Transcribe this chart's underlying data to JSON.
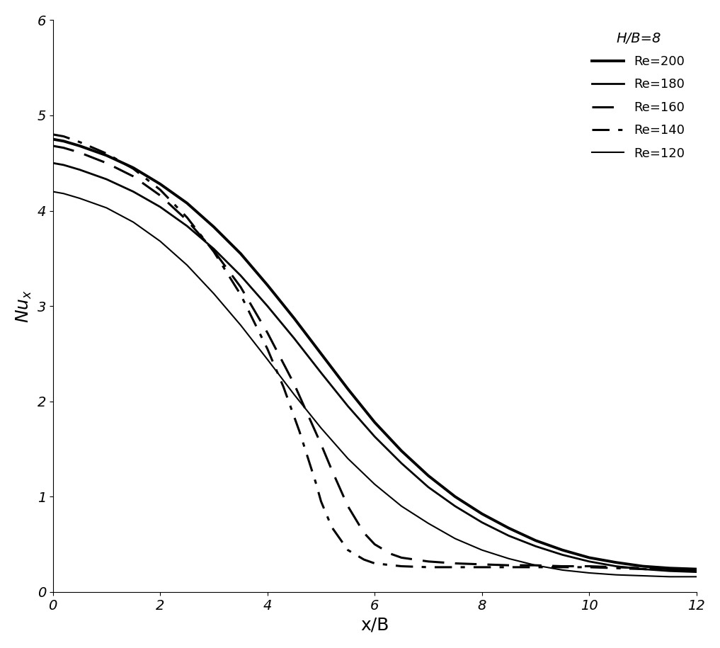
{
  "title": "H/B=8",
  "xlabel": "x/B",
  "ylabel": "$\\mathbf{\\it{Nu_x}}$",
  "xlim": [
    0,
    12
  ],
  "ylim": [
    0,
    6
  ],
  "xticks": [
    0,
    2,
    4,
    6,
    8,
    10,
    12
  ],
  "yticks": [
    0,
    1,
    2,
    3,
    4,
    5,
    6
  ],
  "series": [
    {
      "label": "Re=200",
      "linestyle": "solid",
      "linewidth": 2.8,
      "color": "#000000",
      "x": [
        0,
        0.2,
        0.5,
        1.0,
        1.5,
        2.0,
        2.5,
        3.0,
        3.5,
        4.0,
        4.5,
        5.0,
        5.5,
        6.0,
        6.5,
        7.0,
        7.5,
        8.0,
        8.5,
        9.0,
        9.5,
        10.0,
        10.5,
        11.0,
        11.5,
        12.0
      ],
      "y": [
        4.75,
        4.73,
        4.68,
        4.58,
        4.45,
        4.28,
        4.08,
        3.83,
        3.55,
        3.22,
        2.87,
        2.5,
        2.13,
        1.78,
        1.48,
        1.22,
        1.0,
        0.82,
        0.67,
        0.54,
        0.44,
        0.36,
        0.31,
        0.27,
        0.25,
        0.24
      ]
    },
    {
      "label": "Re=180",
      "linestyle": "solid",
      "linewidth": 2.0,
      "color": "#000000",
      "x": [
        0,
        0.2,
        0.5,
        1.0,
        1.5,
        2.0,
        2.5,
        3.0,
        3.5,
        4.0,
        4.5,
        5.0,
        5.5,
        6.0,
        6.5,
        7.0,
        7.5,
        8.0,
        8.5,
        9.0,
        9.5,
        10.0,
        10.5,
        11.0,
        11.5,
        12.0
      ],
      "y": [
        4.5,
        4.48,
        4.43,
        4.33,
        4.2,
        4.04,
        3.84,
        3.6,
        3.32,
        3.0,
        2.66,
        2.3,
        1.95,
        1.63,
        1.35,
        1.1,
        0.9,
        0.73,
        0.59,
        0.48,
        0.39,
        0.32,
        0.27,
        0.24,
        0.22,
        0.21
      ]
    },
    {
      "label": "Re=160",
      "linestyle": "dashed",
      "linewidth": 2.2,
      "color": "#000000",
      "dash_pattern": [
        10,
        5
      ],
      "x": [
        0,
        0.2,
        0.5,
        1.0,
        1.5,
        2.0,
        2.5,
        3.0,
        3.5,
        4.0,
        4.5,
        5.0,
        5.2,
        5.5,
        5.8,
        6.0,
        6.3,
        6.5,
        7.0,
        7.5,
        8.0,
        8.5,
        9.0,
        9.5,
        10.0,
        10.5,
        11.0,
        11.5,
        12.0
      ],
      "y": [
        4.68,
        4.66,
        4.61,
        4.5,
        4.36,
        4.16,
        3.9,
        3.58,
        3.2,
        2.72,
        2.18,
        1.55,
        1.28,
        0.9,
        0.62,
        0.5,
        0.4,
        0.36,
        0.32,
        0.3,
        0.29,
        0.28,
        0.28,
        0.27,
        0.27,
        0.26,
        0.25,
        0.24,
        0.23
      ]
    },
    {
      "label": "Re=140",
      "linestyle": "dashdot",
      "linewidth": 2.2,
      "color": "#000000",
      "dash_pattern": [
        8,
        4,
        2,
        4
      ],
      "x": [
        0,
        0.2,
        0.5,
        1.0,
        1.5,
        2.0,
        2.5,
        3.0,
        3.5,
        4.0,
        4.3,
        4.6,
        4.9,
        5.0,
        5.2,
        5.5,
        5.8,
        6.0,
        6.5,
        7.0,
        7.5,
        8.0,
        8.5,
        9.0,
        9.5,
        10.0,
        10.5,
        11.0,
        11.5,
        12.0
      ],
      "y": [
        4.8,
        4.78,
        4.72,
        4.6,
        4.44,
        4.22,
        3.93,
        3.57,
        3.12,
        2.55,
        2.15,
        1.68,
        1.15,
        0.95,
        0.68,
        0.44,
        0.34,
        0.3,
        0.27,
        0.26,
        0.26,
        0.26,
        0.26,
        0.26,
        0.26,
        0.26,
        0.25,
        0.24,
        0.23,
        0.22
      ]
    },
    {
      "label": "Re=120",
      "linestyle": "solid",
      "linewidth": 1.5,
      "color": "#000000",
      "x": [
        0,
        0.2,
        0.5,
        1.0,
        1.5,
        2.0,
        2.5,
        3.0,
        3.5,
        4.0,
        4.5,
        5.0,
        5.5,
        6.0,
        6.5,
        7.0,
        7.5,
        8.0,
        8.5,
        9.0,
        9.5,
        10.0,
        10.5,
        11.0,
        11.5,
        12.0
      ],
      "y": [
        4.2,
        4.18,
        4.13,
        4.03,
        3.88,
        3.68,
        3.43,
        3.13,
        2.8,
        2.44,
        2.07,
        1.72,
        1.4,
        1.13,
        0.9,
        0.72,
        0.56,
        0.44,
        0.35,
        0.28,
        0.23,
        0.2,
        0.18,
        0.17,
        0.16,
        0.16
      ]
    }
  ],
  "background_color": "#ffffff",
  "legend_title_fontsize": 14,
  "legend_fontsize": 13,
  "axis_label_fontsize": 18,
  "tick_fontsize": 14
}
